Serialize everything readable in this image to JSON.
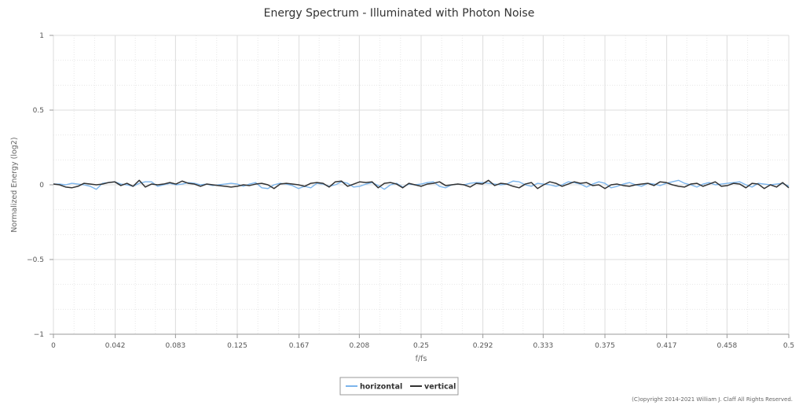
{
  "chart_data": {
    "type": "line",
    "title": "Energy Spectrum - Illuminated with Photon Noise",
    "xlabel": "f/fs",
    "ylabel": "Normalized Energy (log2)",
    "xlim": [
      0,
      0.5
    ],
    "ylim": [
      -1,
      1
    ],
    "x_ticks": [
      0,
      0.042,
      0.083,
      0.125,
      0.167,
      0.208,
      0.25,
      0.292,
      0.333,
      0.375,
      0.417,
      0.458,
      0.5
    ],
    "x_tick_labels": [
      "0",
      "0.042",
      "0.083",
      "0.125",
      "0.167",
      "0.208",
      "0.25",
      "0.292",
      "0.333",
      "0.375",
      "0.417",
      "0.458",
      "0.5"
    ],
    "y_ticks": [
      -1,
      -0.5,
      0,
      0.5,
      1
    ],
    "y_tick_labels": [
      "−1",
      "−0.5",
      "0",
      "0.5",
      "1"
    ],
    "grid": true,
    "legend": "bottom-center",
    "x_step": 0.005,
    "series": [
      {
        "name": "horizontal",
        "color": "#7cb5ec",
        "values": [
          0.005,
          0.005,
          0.0,
          0.01,
          0.005,
          0.0,
          -0.01,
          -0.03,
          0.01,
          0.015,
          0.02,
          0.005,
          0.0,
          -0.01,
          0.01,
          0.02,
          0.02,
          -0.01,
          0.0,
          0.01,
          0.0,
          0.005,
          0.015,
          0.01,
          0.0,
          0.005,
          -0.005,
          0.0,
          0.005,
          0.01,
          0.005,
          -0.01,
          0.005,
          0.015,
          -0.02,
          -0.025,
          0.0,
          0.01,
          0.005,
          -0.005,
          -0.025,
          -0.01,
          -0.02,
          0.01,
          0.005,
          -0.01,
          0.0,
          0.02,
          0.01,
          -0.015,
          -0.01,
          0.005,
          0.015,
          -0.005,
          -0.03,
          0.0,
          0.01,
          -0.015,
          0.005,
          0.0,
          0.005,
          0.015,
          0.02,
          -0.01,
          -0.02,
          0.0,
          0.005,
          0.0,
          0.01,
          0.015,
          0.015,
          0.01,
          0.005,
          0.0,
          0.005,
          0.025,
          0.02,
          0.0,
          -0.01,
          0.01,
          0.005,
          0.0,
          -0.01,
          0.0,
          0.02,
          0.015,
          0.005,
          -0.015,
          0.005,
          0.02,
          0.01,
          -0.02,
          -0.01,
          0.005,
          0.015,
          0.0,
          -0.01,
          0.01,
          0.005,
          -0.005,
          0.01,
          0.02,
          0.03,
          0.01,
          0.0,
          -0.015,
          0.005,
          0.015,
          0.0,
          0.005,
          0.01,
          0.015,
          0.02,
          0.0,
          -0.015,
          0.01,
          0.005,
          0.0,
          0.005,
          0.01,
          -0.01
        ]
      },
      {
        "name": "vertical",
        "color": "#333333",
        "values": [
          0.005,
          0.0,
          -0.015,
          -0.02,
          -0.01,
          0.01,
          0.005,
          0.0,
          0.005,
          0.015,
          0.02,
          -0.005,
          0.01,
          -0.01,
          0.03,
          -0.015,
          0.005,
          0.0,
          0.005,
          0.015,
          0.005,
          0.025,
          0.01,
          0.005,
          -0.01,
          0.005,
          0.0,
          -0.005,
          -0.01,
          -0.015,
          -0.01,
          0.0,
          -0.005,
          0.005,
          0.01,
          0.0,
          -0.025,
          0.005,
          0.01,
          0.005,
          0.0,
          -0.01,
          0.01,
          0.015,
          0.01,
          -0.015,
          0.02,
          0.025,
          -0.01,
          0.005,
          0.02,
          0.015,
          0.02,
          -0.02,
          0.01,
          0.015,
          0.005,
          -0.02,
          0.01,
          0.0,
          -0.01,
          0.005,
          0.01,
          0.02,
          -0.005,
          0.0,
          0.005,
          0.0,
          -0.015,
          0.01,
          0.005,
          0.03,
          -0.005,
          0.01,
          0.005,
          -0.01,
          -0.02,
          0.005,
          0.015,
          -0.025,
          0.0,
          0.02,
          0.01,
          -0.01,
          0.005,
          0.02,
          0.01,
          0.015,
          -0.005,
          0.0,
          -0.025,
          0.0,
          0.005,
          -0.005,
          -0.01,
          0.0,
          0.005,
          0.01,
          -0.005,
          0.02,
          0.015,
          0.0,
          -0.01,
          -0.015,
          0.005,
          0.01,
          -0.01,
          0.005,
          0.02,
          -0.01,
          -0.005,
          0.01,
          0.005,
          -0.02,
          0.01,
          0.005,
          -0.025,
          0.0,
          -0.015,
          0.015,
          -0.02
        ]
      }
    ]
  },
  "credit": "(C)opyright 2014-2021 William J. Claff All Rights Reserved."
}
